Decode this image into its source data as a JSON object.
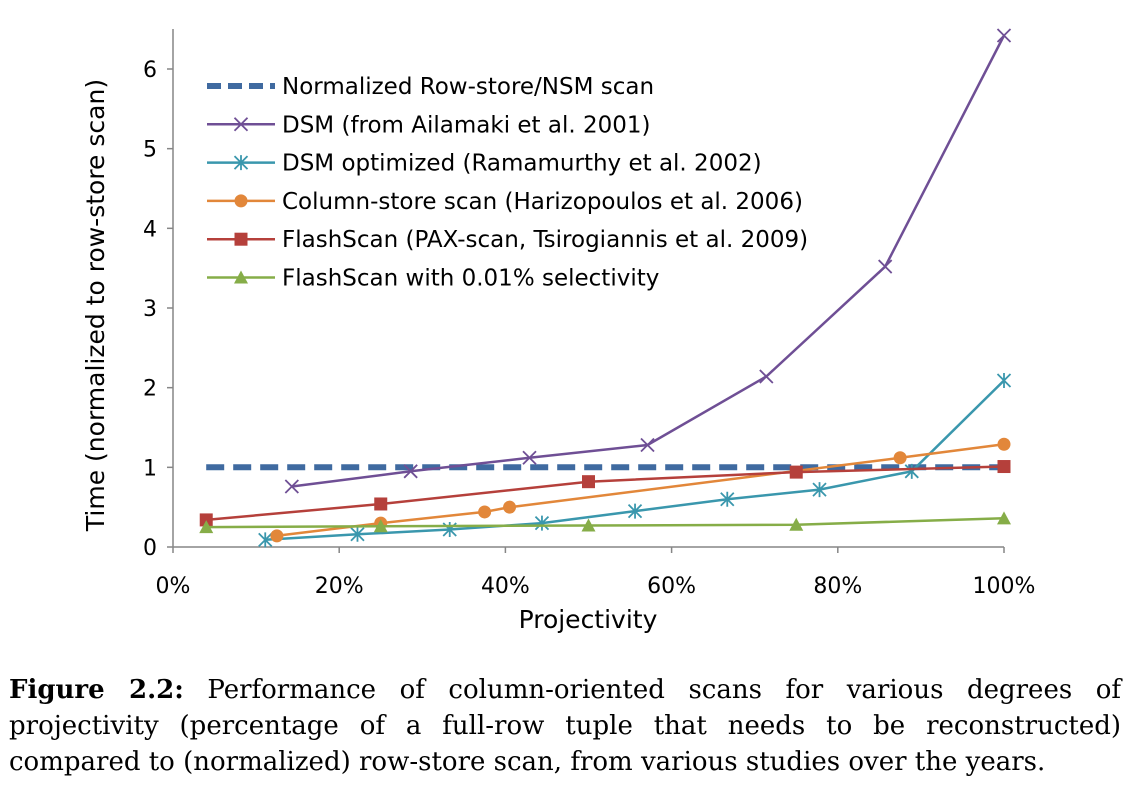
{
  "chart_data": {
    "type": "line",
    "xlabel": "Projectivity",
    "ylabel": "Time (normalized to row-store scan)",
    "xlim": [
      0,
      100
    ],
    "ylim": [
      0,
      6.5
    ],
    "x_ticks": [
      "0%",
      "20%",
      "40%",
      "60%",
      "80%",
      "100%"
    ],
    "x_tick_values": [
      0,
      20,
      40,
      60,
      80,
      100
    ],
    "y_ticks": [
      "0",
      "1",
      "2",
      "3",
      "4",
      "5",
      "6"
    ],
    "y_tick_values": [
      0,
      1,
      2,
      3,
      4,
      5,
      6
    ],
    "grid": false,
    "legend_position": "top-left",
    "series": [
      {
        "name": "Normalized Row-store/NSM scan",
        "color": "#3f6aa0",
        "marker": "none",
        "dashed": true,
        "points": [
          [
            4,
            1.0
          ],
          [
            100,
            1.0
          ]
        ]
      },
      {
        "name": "DSM (from Ailamaki et al. 2001)",
        "color": "#6f4f95",
        "marker": "x",
        "points": [
          [
            14.3,
            0.76
          ],
          [
            28.6,
            0.95
          ],
          [
            42.9,
            1.12
          ],
          [
            57.1,
            1.28
          ],
          [
            71.4,
            2.14
          ],
          [
            85.7,
            3.52
          ],
          [
            100,
            6.42
          ]
        ]
      },
      {
        "name": "DSM optimized (Ramamurthy et al. 2002)",
        "color": "#3a97ad",
        "marker": "asterisk",
        "points": [
          [
            11.1,
            0.09
          ],
          [
            22.2,
            0.16
          ],
          [
            33.3,
            0.22
          ],
          [
            44.4,
            0.3
          ],
          [
            55.6,
            0.45
          ],
          [
            66.7,
            0.6
          ],
          [
            77.8,
            0.72
          ],
          [
            88.9,
            0.95
          ],
          [
            100,
            2.09
          ]
        ]
      },
      {
        "name": "Column-store scan (Harizopoulos et al. 2006)",
        "color": "#e2873a",
        "marker": "circle",
        "points": [
          [
            12.5,
            0.14
          ],
          [
            25,
            0.3
          ],
          [
            37.5,
            0.44
          ],
          [
            40.5,
            0.5
          ],
          [
            87.5,
            1.12
          ],
          [
            100,
            1.29
          ]
        ]
      },
      {
        "name": "FlashScan (PAX-scan, Tsirogiannis et al. 2009)",
        "color": "#b5403b",
        "marker": "square",
        "points": [
          [
            4,
            0.34
          ],
          [
            25,
            0.54
          ],
          [
            50,
            0.82
          ],
          [
            75,
            0.94
          ],
          [
            100,
            1.01
          ]
        ]
      },
      {
        "name": "FlashScan with 0.01% selectivity",
        "color": "#86ad48",
        "marker": "triangle",
        "points": [
          [
            4,
            0.25
          ],
          [
            25,
            0.26
          ],
          [
            50,
            0.27
          ],
          [
            75,
            0.28
          ],
          [
            100,
            0.36
          ]
        ]
      }
    ]
  },
  "caption": {
    "label": "Figure 2.2:",
    "text": "Performance of column-oriented scans for various degrees of projectivity (percentage of a full-row tuple that needs to be reconstructed) compared to (normalized) row-store scan, from various studies over the years."
  }
}
